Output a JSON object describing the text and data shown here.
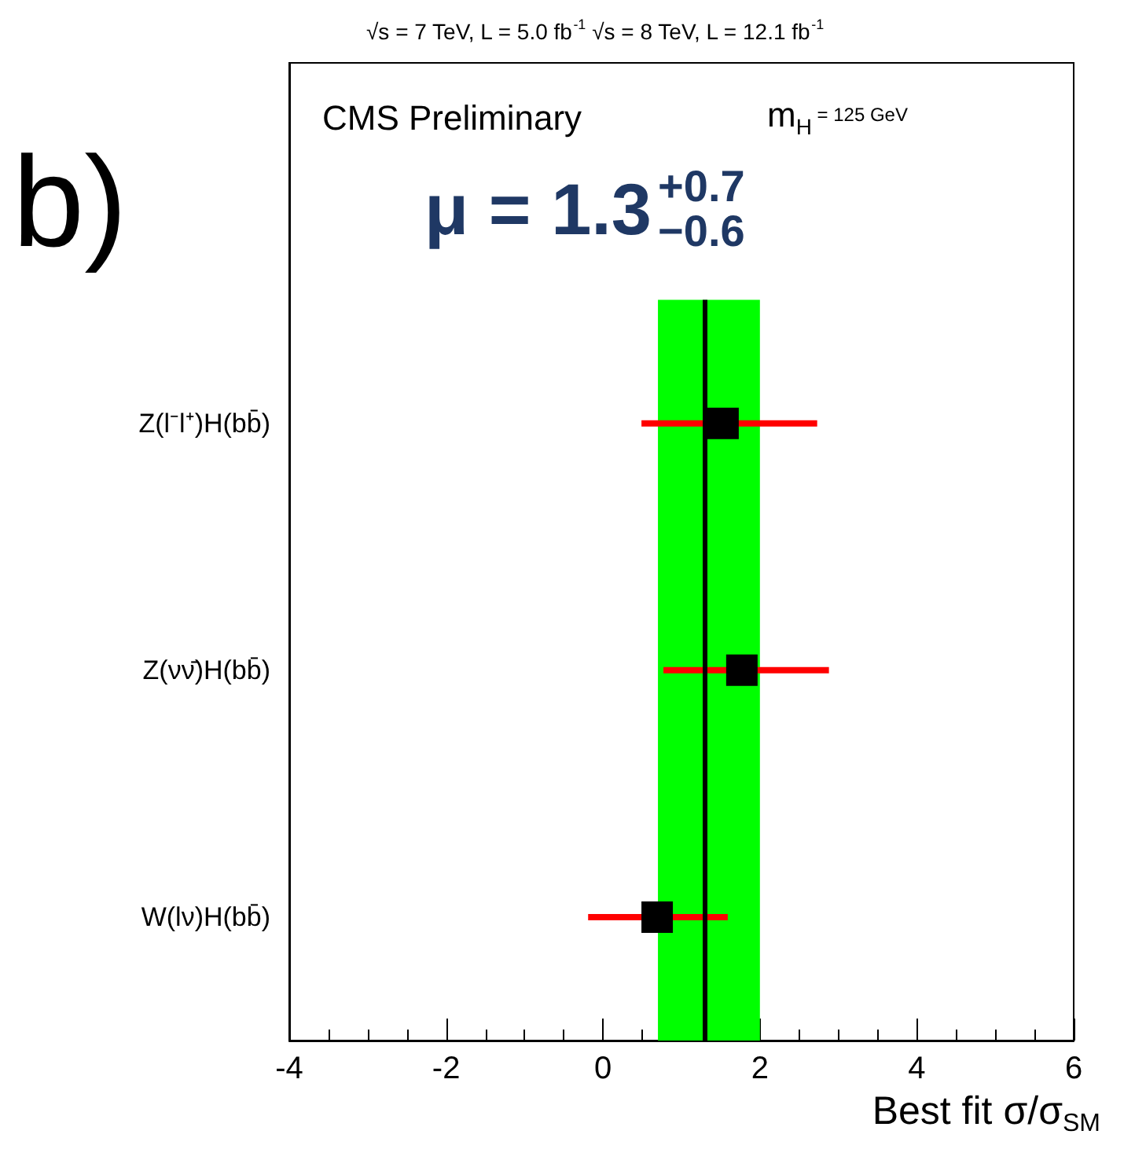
{
  "chart_data": {
    "type": "scatter",
    "orientation": "horizontal",
    "title": "√s = 7 TeV, L = 5.0 fb$^{-1}$ √s = 8 TeV, L = 12.1 fb$^{-1}$",
    "xlabel": "Best fit σ/σ$_{SM}$",
    "annotations": [
      "b)",
      "CMS Preliminary",
      "m$_{H}$ = 125 GeV",
      "μ = 1.3$^{+0.7}$$_{−0.6}$"
    ],
    "categories": [
      "Z(l⁻l⁺)H(bb̄)",
      "Z(νν̄)H(bb̄)",
      "W(lν)H(bb̄)"
    ],
    "series": [
      {
        "color": "#000000",
        "values": [
          1.53,
          1.77,
          0.69
        ],
        "errors": [
          [
            0.49,
            2.73
          ],
          [
            0.77,
            2.88
          ],
          [
            -0.19,
            1.59
          ]
        ]
      }
    ],
    "marker": "square",
    "xlim": [
      -4,
      6
    ],
    "xticks": [
      -4,
      -2,
      0,
      2,
      4,
      6
    ],
    "ref_lines": [
      {
        "axis": "x",
        "value": 1.3,
        "color": "#000000"
      }
    ],
    "bands": [
      {
        "axis": "x",
        "from": 0.7,
        "to": 2.0,
        "color": "#00ff00"
      }
    ]
  }
}
